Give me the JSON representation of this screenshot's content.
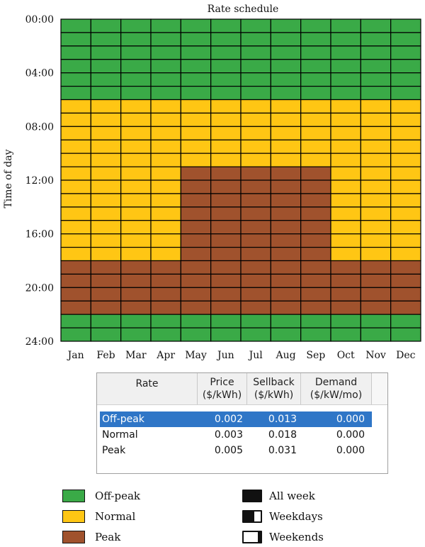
{
  "chart_data": {
    "type": "heatmap",
    "title": "Rate schedule",
    "ylabel": "Time of day",
    "xlabel": "",
    "months": [
      "Jan",
      "Feb",
      "Mar",
      "Apr",
      "May",
      "Jun",
      "Jul",
      "Aug",
      "Sep",
      "Oct",
      "Nov",
      "Dec"
    ],
    "y_ticks": [
      "00:00",
      "04:00",
      "08:00",
      "12:00",
      "16:00",
      "20:00",
      "24:00"
    ],
    "hours": 24,
    "categories": [
      "Off-peak",
      "Normal",
      "Peak"
    ],
    "colors": {
      "Off-peak": "#3aaa47",
      "Normal": "#ffc614",
      "Peak": "#a0522d"
    },
    "grid": true,
    "schedule_by_season": {
      "Jan-Apr, Oct-Dec": {
        "Off-peak": "00:00-06:00, 22:00-24:00",
        "Normal": "06:00-18:00",
        "Peak": "18:00-22:00"
      },
      "May-Sep": {
        "Off-peak": "00:00-06:00, 22:00-24:00",
        "Normal": "06:00-11:00",
        "Peak": "11:00-22:00"
      }
    },
    "matrix": [
      [
        "Off-peak",
        "Off-peak",
        "Off-peak",
        "Off-peak",
        "Off-peak",
        "Off-peak",
        "Off-peak",
        "Off-peak",
        "Off-peak",
        "Off-peak",
        "Off-peak",
        "Off-peak"
      ],
      [
        "Off-peak",
        "Off-peak",
        "Off-peak",
        "Off-peak",
        "Off-peak",
        "Off-peak",
        "Off-peak",
        "Off-peak",
        "Off-peak",
        "Off-peak",
        "Off-peak",
        "Off-peak"
      ],
      [
        "Off-peak",
        "Off-peak",
        "Off-peak",
        "Off-peak",
        "Off-peak",
        "Off-peak",
        "Off-peak",
        "Off-peak",
        "Off-peak",
        "Off-peak",
        "Off-peak",
        "Off-peak"
      ],
      [
        "Off-peak",
        "Off-peak",
        "Off-peak",
        "Off-peak",
        "Off-peak",
        "Off-peak",
        "Off-peak",
        "Off-peak",
        "Off-peak",
        "Off-peak",
        "Off-peak",
        "Off-peak"
      ],
      [
        "Off-peak",
        "Off-peak",
        "Off-peak",
        "Off-peak",
        "Off-peak",
        "Off-peak",
        "Off-peak",
        "Off-peak",
        "Off-peak",
        "Off-peak",
        "Off-peak",
        "Off-peak"
      ],
      [
        "Off-peak",
        "Off-peak",
        "Off-peak",
        "Off-peak",
        "Off-peak",
        "Off-peak",
        "Off-peak",
        "Off-peak",
        "Off-peak",
        "Off-peak",
        "Off-peak",
        "Off-peak"
      ],
      [
        "Normal",
        "Normal",
        "Normal",
        "Normal",
        "Normal",
        "Normal",
        "Normal",
        "Normal",
        "Normal",
        "Normal",
        "Normal",
        "Normal"
      ],
      [
        "Normal",
        "Normal",
        "Normal",
        "Normal",
        "Normal",
        "Normal",
        "Normal",
        "Normal",
        "Normal",
        "Normal",
        "Normal",
        "Normal"
      ],
      [
        "Normal",
        "Normal",
        "Normal",
        "Normal",
        "Normal",
        "Normal",
        "Normal",
        "Normal",
        "Normal",
        "Normal",
        "Normal",
        "Normal"
      ],
      [
        "Normal",
        "Normal",
        "Normal",
        "Normal",
        "Normal",
        "Normal",
        "Normal",
        "Normal",
        "Normal",
        "Normal",
        "Normal",
        "Normal"
      ],
      [
        "Normal",
        "Normal",
        "Normal",
        "Normal",
        "Normal",
        "Normal",
        "Normal",
        "Normal",
        "Normal",
        "Normal",
        "Normal",
        "Normal"
      ],
      [
        "Normal",
        "Normal",
        "Normal",
        "Normal",
        "Peak",
        "Peak",
        "Peak",
        "Peak",
        "Peak",
        "Normal",
        "Normal",
        "Normal"
      ],
      [
        "Normal",
        "Normal",
        "Normal",
        "Normal",
        "Peak",
        "Peak",
        "Peak",
        "Peak",
        "Peak",
        "Normal",
        "Normal",
        "Normal"
      ],
      [
        "Normal",
        "Normal",
        "Normal",
        "Normal",
        "Peak",
        "Peak",
        "Peak",
        "Peak",
        "Peak",
        "Normal",
        "Normal",
        "Normal"
      ],
      [
        "Normal",
        "Normal",
        "Normal",
        "Normal",
        "Peak",
        "Peak",
        "Peak",
        "Peak",
        "Peak",
        "Normal",
        "Normal",
        "Normal"
      ],
      [
        "Normal",
        "Normal",
        "Normal",
        "Normal",
        "Peak",
        "Peak",
        "Peak",
        "Peak",
        "Peak",
        "Normal",
        "Normal",
        "Normal"
      ],
      [
        "Normal",
        "Normal",
        "Normal",
        "Normal",
        "Peak",
        "Peak",
        "Peak",
        "Peak",
        "Peak",
        "Normal",
        "Normal",
        "Normal"
      ],
      [
        "Normal",
        "Normal",
        "Normal",
        "Normal",
        "Peak",
        "Peak",
        "Peak",
        "Peak",
        "Peak",
        "Normal",
        "Normal",
        "Normal"
      ],
      [
        "Peak",
        "Peak",
        "Peak",
        "Peak",
        "Peak",
        "Peak",
        "Peak",
        "Peak",
        "Peak",
        "Peak",
        "Peak",
        "Peak"
      ],
      [
        "Peak",
        "Peak",
        "Peak",
        "Peak",
        "Peak",
        "Peak",
        "Peak",
        "Peak",
        "Peak",
        "Peak",
        "Peak",
        "Peak"
      ],
      [
        "Peak",
        "Peak",
        "Peak",
        "Peak",
        "Peak",
        "Peak",
        "Peak",
        "Peak",
        "Peak",
        "Peak",
        "Peak",
        "Peak"
      ],
      [
        "Peak",
        "Peak",
        "Peak",
        "Peak",
        "Peak",
        "Peak",
        "Peak",
        "Peak",
        "Peak",
        "Peak",
        "Peak",
        "Peak"
      ],
      [
        "Off-peak",
        "Off-peak",
        "Off-peak",
        "Off-peak",
        "Off-peak",
        "Off-peak",
        "Off-peak",
        "Off-peak",
        "Off-peak",
        "Off-peak",
        "Off-peak",
        "Off-peak"
      ],
      [
        "Off-peak",
        "Off-peak",
        "Off-peak",
        "Off-peak",
        "Off-peak",
        "Off-peak",
        "Off-peak",
        "Off-peak",
        "Off-peak",
        "Off-peak",
        "Off-peak",
        "Off-peak"
      ]
    ]
  },
  "rate_table": {
    "headers": {
      "rate": "Rate",
      "price_line1": "Price",
      "price_line2": "($/kWh)",
      "sellback_line1": "Sellback",
      "sellback_line2": "($/kWh)",
      "demand_line1": "Demand",
      "demand_line2": "($/kW/mo)"
    },
    "rows": [
      {
        "rate": "Off-peak",
        "price": "0.002",
        "sellback": "0.013",
        "demand": "0.000",
        "selected": true
      },
      {
        "rate": "Normal",
        "price": "0.003",
        "sellback": "0.018",
        "demand": "0.000",
        "selected": false
      },
      {
        "rate": "Peak",
        "price": "0.005",
        "sellback": "0.031",
        "demand": "0.000",
        "selected": false
      }
    ],
    "selection_color": "#2f76c7"
  },
  "color_legend": [
    {
      "label": "Off-peak",
      "color": "#3aaa47"
    },
    {
      "label": "Normal",
      "color": "#ffc614"
    },
    {
      "label": "Peak",
      "color": "#a0522d"
    }
  ],
  "mode_legend": [
    {
      "label": "All week",
      "icon": "all-week-icon"
    },
    {
      "label": "Weekdays",
      "icon": "weekdays-icon"
    },
    {
      "label": "Weekends",
      "icon": "weekends-icon"
    }
  ]
}
